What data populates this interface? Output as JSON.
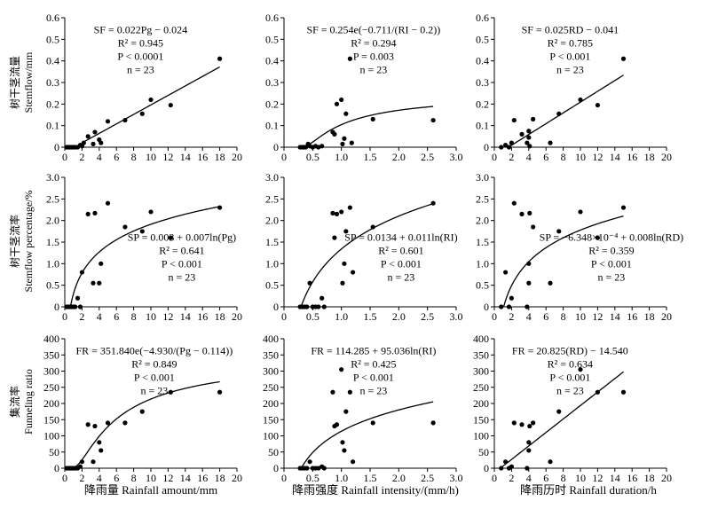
{
  "figure": {
    "row_ylabels": [
      [
        "树干茎流量",
        "Stemflow/mm"
      ],
      [
        "树干茎流率",
        "Stemflow percentage/%"
      ],
      [
        "集流率",
        "Funneling ratio"
      ]
    ],
    "col_xlabels": [
      "降雨量 Rainfall amount/mm",
      "降雨强度 Rainfall intensity/(mm/h)",
      "降雨历时 Rainfall duration/h"
    ]
  },
  "chart_data": [
    {
      "type": "scatter",
      "row": 0,
      "col": 0,
      "xlim": [
        0,
        20
      ],
      "ylim": [
        0,
        0.6
      ],
      "xticks": [
        "0",
        "2",
        "4",
        "6",
        "8",
        "10",
        "12",
        "14",
        "16",
        "18",
        "20"
      ],
      "yticks": [
        "0",
        "0.1",
        "0.2",
        "0.3",
        "0.4",
        "0.5",
        "0.6"
      ],
      "x": [
        0.2,
        0.4,
        0.6,
        0.8,
        1.0,
        1.2,
        1.5,
        1.8,
        2.0,
        2.2,
        2.7,
        3.3,
        3.5,
        4.0,
        4.2,
        5.0,
        7.0,
        9.0,
        10.0,
        12.3,
        18.0
      ],
      "y": [
        0,
        0,
        0,
        0,
        0,
        0,
        0,
        0.01,
        0.005,
        0.02,
        0.05,
        0.015,
        0.07,
        0.035,
        0.02,
        0.12,
        0.125,
        0.155,
        0.22,
        0.195,
        0.41
      ],
      "fit": {
        "kind": "linear",
        "a": 0.022,
        "b": -0.024,
        "range": [
          2.0,
          18.0
        ]
      },
      "annotation": {
        "equation": "SF = 0.022Pg − 0.024",
        "r2": "R² = 0.945",
        "p": "P < 0.0001",
        "n": "n = 23"
      },
      "annotation_position": "top-left"
    },
    {
      "type": "scatter",
      "row": 0,
      "col": 1,
      "xlim": [
        0,
        3.0
      ],
      "ylim": [
        0,
        0.6
      ],
      "xticks": [
        "0",
        "0.5",
        "1.0",
        "1.5",
        "2.0",
        "2.5",
        "3.0"
      ],
      "yticks": [
        "0",
        "0.1",
        "0.2",
        "0.3",
        "0.4",
        "0.5",
        "0.6"
      ],
      "x": [
        0.28,
        0.32,
        0.35,
        0.38,
        0.42,
        0.45,
        0.5,
        0.55,
        0.6,
        0.66,
        0.85,
        0.88,
        0.92,
        1.0,
        1.02,
        1.05,
        1.08,
        1.15,
        1.18,
        1.55,
        2.6
      ],
      "y": [
        0,
        0,
        0,
        0,
        0.015,
        0.005,
        0,
        0.005,
        0,
        0.005,
        0.07,
        0.06,
        0.2,
        0.22,
        0.015,
        0.04,
        0.155,
        0.41,
        0.02,
        0.13,
        0.125
      ],
      "fit": {
        "kind": "exp",
        "a": 0.254,
        "b": -0.711,
        "c": 0.2,
        "range": [
          0.36,
          2.6
        ]
      },
      "annotation": {
        "equation": "SF = 0.254e(−0.711/(RI − 0.2))",
        "r2": "R² = 0.294",
        "p": "P = 0.003",
        "n": "n = 23"
      },
      "annotation_position": "top-center"
    },
    {
      "type": "scatter",
      "row": 0,
      "col": 2,
      "xlim": [
        0,
        20
      ],
      "ylim": [
        0,
        0.6
      ],
      "xticks": [
        "0",
        "2",
        "4",
        "6",
        "8",
        "10",
        "12",
        "14",
        "16",
        "18",
        "20"
      ],
      "yticks": [
        "0",
        "0.1",
        "0.2",
        "0.3",
        "0.4",
        "0.5",
        "0.6"
      ],
      "x": [
        0.8,
        1.3,
        1.7,
        2.0,
        2.3,
        3.2,
        3.8,
        4.0,
        4.0,
        4.1,
        4.5,
        6.5,
        7.5,
        10.0,
        12.0,
        15.0
      ],
      "y": [
        0,
        0.01,
        0,
        0.02,
        0.125,
        0.06,
        0.02,
        0.045,
        0.075,
        0.005,
        0.13,
        0.02,
        0.155,
        0.22,
        0.195,
        0.41
      ],
      "fit": {
        "kind": "linear",
        "a": 0.025,
        "b": -0.041,
        "range": [
          1.65,
          15.0
        ]
      },
      "annotation": {
        "equation": "SF = 0.025RD − 0.041",
        "r2": "R² = 0.785",
        "p": "P < 0.001",
        "n": "n = 23"
      },
      "annotation_position": "top-left"
    },
    {
      "type": "scatter",
      "row": 1,
      "col": 0,
      "xlim": [
        0,
        20
      ],
      "ylim": [
        0,
        3.0
      ],
      "xticks": [
        "0",
        "2",
        "4",
        "6",
        "8",
        "10",
        "12",
        "14",
        "16",
        "18",
        "20"
      ],
      "yticks": [
        "0",
        "0.5",
        "1.0",
        "1.5",
        "2.0",
        "2.5",
        "3.0"
      ],
      "x": [
        0.2,
        0.4,
        0.6,
        0.8,
        1.0,
        1.2,
        1.5,
        1.8,
        2.0,
        2.7,
        3.3,
        3.5,
        4.0,
        4.2,
        5.0,
        7.0,
        9.0,
        10.0,
        12.3,
        18.0
      ],
      "y": [
        0,
        0,
        0,
        0,
        0,
        0,
        0.2,
        0,
        0.8,
        2.15,
        0.55,
        2.17,
        0.55,
        1.0,
        2.4,
        1.85,
        1.75,
        2.2,
        1.6,
        2.3
      ],
      "fit": {
        "kind": "log",
        "a": 0.003,
        "b": 0.007,
        "scale": 100,
        "range": [
          0.66,
          18.0
        ]
      },
      "annotation": {
        "equation": "SP = 0.003 + 0.007ln(Pg)",
        "r2": "R² = 0.641",
        "p": "P < 0.001",
        "n": "n = 23"
      },
      "annotation_position": "center-right"
    },
    {
      "type": "scatter",
      "row": 1,
      "col": 1,
      "xlim": [
        0,
        3.0
      ],
      "ylim": [
        0,
        3.0
      ],
      "xticks": [
        "0",
        "0.5",
        "1.0",
        "1.5",
        "2.0",
        "2.5",
        "3.0"
      ],
      "yticks": [
        "0",
        "0.5",
        "1.0",
        "1.5",
        "2.0",
        "2.5",
        "3.0"
      ],
      "x": [
        0.28,
        0.32,
        0.36,
        0.4,
        0.45,
        0.5,
        0.55,
        0.6,
        0.66,
        0.7,
        0.85,
        0.88,
        0.92,
        1.0,
        1.02,
        1.05,
        1.08,
        1.15,
        1.2,
        1.55,
        2.6
      ],
      "y": [
        0,
        0,
        0,
        0,
        0.55,
        0,
        0,
        0,
        0.2,
        0,
        2.17,
        1.6,
        2.15,
        2.2,
        0.55,
        1.0,
        1.75,
        2.3,
        0.8,
        1.85,
        2.4
      ],
      "fit": {
        "kind": "log",
        "a": 0.0134,
        "b": 0.011,
        "scale": 100,
        "range": [
          0.3,
          2.6
        ]
      },
      "annotation": {
        "equation": "SP = 0.0134 + 0.011ln(RI)",
        "r2": "R² = 0.601",
        "p": "P < 0.001",
        "n": "n = 23"
      },
      "annotation_position": "center-right"
    },
    {
      "type": "scatter",
      "row": 1,
      "col": 2,
      "xlim": [
        0,
        20
      ],
      "ylim": [
        0,
        3.0
      ],
      "xticks": [
        "0",
        "2",
        "4",
        "6",
        "8",
        "10",
        "12",
        "14",
        "16",
        "18",
        "20"
      ],
      "yticks": [
        "0",
        "0.5",
        "1.0",
        "1.5",
        "2.0",
        "2.5",
        "3.0"
      ],
      "x": [
        0.8,
        1.3,
        1.7,
        2.0,
        2.3,
        3.2,
        3.8,
        4.0,
        4.0,
        4.1,
        4.5,
        6.5,
        7.5,
        10.0,
        12.0,
        15.0
      ],
      "y": [
        0,
        0.8,
        0,
        0.2,
        2.4,
        2.15,
        0,
        1.0,
        0.55,
        2.17,
        1.85,
        0.55,
        1.75,
        2.2,
        1.6,
        2.3
      ],
      "fit": {
        "kind": "log",
        "a": -0.0006348,
        "b": 0.008,
        "scale": 100,
        "range": [
          1.1,
          15.0
        ]
      },
      "annotation": {
        "equation": "SP = −6.348×10⁻⁴ + 0.008ln(RD)",
        "r2": "R² = 0.359",
        "p": "P < 0.001",
        "n": "n = 23"
      },
      "annotation_position": "center-right"
    },
    {
      "type": "scatter",
      "row": 2,
      "col": 0,
      "xlim": [
        0,
        20
      ],
      "ylim": [
        0,
        400
      ],
      "xticks": [
        "0",
        "2",
        "4",
        "6",
        "8",
        "10",
        "12",
        "14",
        "16",
        "18",
        "20"
      ],
      "yticks": [
        "0",
        "50",
        "100",
        "150",
        "200",
        "250",
        "300",
        "350",
        "400"
      ],
      "x": [
        0.2,
        0.4,
        0.6,
        0.8,
        1.0,
        1.2,
        1.5,
        1.8,
        2.0,
        2.7,
        3.3,
        3.5,
        4.0,
        4.2,
        5.0,
        7.0,
        9.0,
        12.3,
        18.0
      ],
      "y": [
        0,
        0,
        0,
        0,
        0,
        0,
        0,
        5,
        20,
        135,
        20,
        130,
        80,
        55,
        140,
        140,
        175,
        235,
        235
      ],
      "fit": {
        "kind": "exp",
        "a": 351.84,
        "b": -4.93,
        "c": 0.114,
        "range": [
          1.3,
          18.0
        ]
      },
      "annotation": {
        "equation": "FR = 351.840e(−4.930/(Pg − 0.114))",
        "r2": "R² = 0.849",
        "p": "P < 0.001",
        "n": "n = 23"
      },
      "annotation_position": "top-center"
    },
    {
      "type": "scatter",
      "row": 2,
      "col": 1,
      "xlim": [
        0,
        3.0
      ],
      "ylim": [
        0,
        400
      ],
      "xticks": [
        "0",
        "0.5",
        "1.0",
        "1.5",
        "2.0",
        "2.5",
        "3.0"
      ],
      "yticks": [
        "0",
        "50",
        "100",
        "150",
        "200",
        "250",
        "300",
        "350",
        "400"
      ],
      "x": [
        0.28,
        0.32,
        0.36,
        0.4,
        0.45,
        0.5,
        0.55,
        0.6,
        0.66,
        0.7,
        0.85,
        0.88,
        0.92,
        1.0,
        1.02,
        1.05,
        1.08,
        1.15,
        1.2,
        1.55,
        2.6
      ],
      "y": [
        0,
        0,
        0,
        0,
        20,
        0,
        0,
        0,
        5,
        0,
        235,
        130,
        135,
        305,
        80,
        55,
        175,
        235,
        20,
        140,
        140
      ],
      "fit": {
        "kind": "log",
        "a": 114.285,
        "b": 95.036,
        "range": [
          0.3,
          2.6
        ]
      },
      "annotation": {
        "equation": "FR = 114.285 + 95.036ln(RI)",
        "r2": "R² = 0.425",
        "p": "P < 0.001",
        "n": "n = 23"
      },
      "annotation_position": "top-center"
    },
    {
      "type": "scatter",
      "row": 2,
      "col": 2,
      "xlim": [
        0,
        20
      ],
      "ylim": [
        0,
        400
      ],
      "xticks": [
        "0",
        "2",
        "4",
        "6",
        "8",
        "10",
        "12",
        "14",
        "16",
        "18",
        "20"
      ],
      "yticks": [
        "0",
        "50",
        "100",
        "150",
        "200",
        "250",
        "300",
        "350",
        "400"
      ],
      "x": [
        0.8,
        1.3,
        1.7,
        2.0,
        2.3,
        3.2,
        3.8,
        4.0,
        4.0,
        4.1,
        4.5,
        6.5,
        7.5,
        10.0,
        12.0,
        15.0
      ],
      "y": [
        0,
        20,
        0,
        5,
        140,
        135,
        0,
        80,
        55,
        130,
        140,
        20,
        175,
        305,
        235,
        235
      ],
      "fit": {
        "kind": "linear",
        "a": 20.825,
        "b": -14.54,
        "range": [
          0.7,
          15.0
        ]
      },
      "annotation": {
        "equation": "FR = 20.825(RD) − 14.540",
        "r2": "R² = 0.634",
        "p": "P < 0.001",
        "n": "n = 23"
      },
      "annotation_position": "top-left"
    }
  ]
}
